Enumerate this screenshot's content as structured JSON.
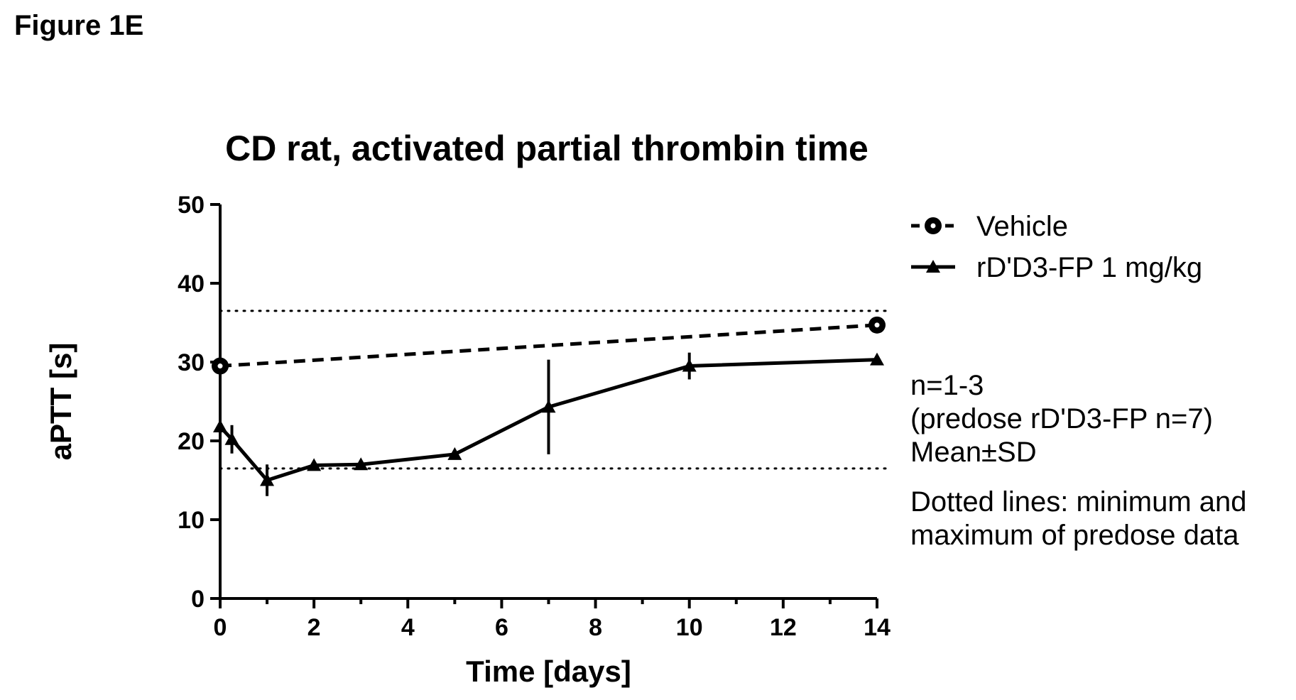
{
  "figure_label": "Figure 1E",
  "notes": {
    "n": "n=1-3",
    "predose": "(predose rD'D3-FP n=7)",
    "stat": "Mean±SD",
    "dotted_line1": "Dotted lines: minimum and",
    "dotted_line2": "maximum of predose data"
  },
  "chart_data": {
    "type": "line",
    "title": "CD rat, activated partial thrombin time",
    "xlabel": "Time [days]",
    "ylabel": "aPTT [s]",
    "xlim": [
      0,
      14
    ],
    "ylim": [
      0,
      50
    ],
    "xticks": [
      0,
      2,
      4,
      6,
      8,
      10,
      12,
      14
    ],
    "yticks": [
      0,
      10,
      20,
      30,
      40,
      50
    ],
    "legend_position": "right",
    "grid": false,
    "series": [
      {
        "name": "Vehicle",
        "marker": "circle",
        "line_style": "dashed",
        "x": [
          0,
          14
        ],
        "y": [
          29.5,
          34.7
        ],
        "sd": [
          0,
          0
        ]
      },
      {
        "name": "rD'D3-FP 1 mg/kg",
        "marker": "triangle",
        "line_style": "solid",
        "x": [
          0,
          0.25,
          1,
          2,
          3,
          5,
          7,
          10,
          14
        ],
        "y": [
          21.8,
          20.2,
          15.0,
          16.9,
          17.0,
          18.3,
          24.3,
          29.5,
          30.3
        ],
        "sd": [
          0,
          1.8,
          2.0,
          0,
          0,
          0,
          6.0,
          1.7,
          0
        ]
      }
    ],
    "reference_lines": [
      {
        "label": "minimum of predose data",
        "y": 16.5,
        "style": "dotted"
      },
      {
        "label": "maximum of predose data",
        "y": 36.5,
        "style": "dotted"
      }
    ]
  }
}
